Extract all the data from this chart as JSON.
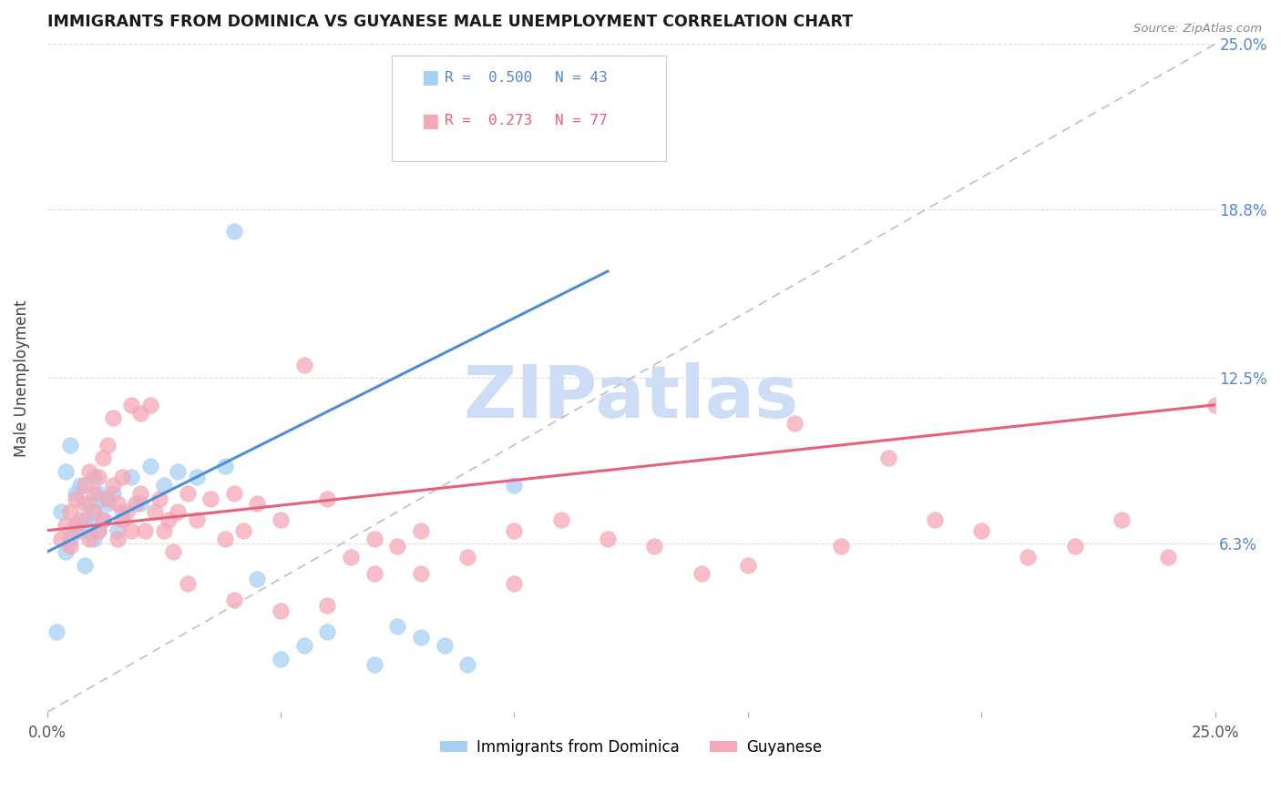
{
  "title": "IMMIGRANTS FROM DOMINICA VS GUYANESE MALE UNEMPLOYMENT CORRELATION CHART",
  "source": "Source: ZipAtlas.com",
  "ylabel": "Male Unemployment",
  "ytick_labels": [
    "6.3%",
    "12.5%",
    "18.8%",
    "25.0%"
  ],
  "ytick_values": [
    0.063,
    0.125,
    0.188,
    0.25
  ],
  "xlim": [
    0.0,
    0.25
  ],
  "ylim": [
    0.0,
    0.25
  ],
  "series1_color": "#a8d0f5",
  "series2_color": "#f5a8b8",
  "trendline1_color": "#4a90d9",
  "trendline2_color": "#e8607a",
  "diagonal_color": "#c0c0c0",
  "watermark_color": "#ccddf5",
  "series1_x": [
    0.002,
    0.003,
    0.004,
    0.004,
    0.005,
    0.005,
    0.006,
    0.006,
    0.007,
    0.007,
    0.008,
    0.008,
    0.009,
    0.009,
    0.01,
    0.01,
    0.01,
    0.011,
    0.011,
    0.012,
    0.012,
    0.013,
    0.014,
    0.015,
    0.016,
    0.018,
    0.02,
    0.022,
    0.025,
    0.028,
    0.032,
    0.038,
    0.04,
    0.045,
    0.05,
    0.055,
    0.06,
    0.07,
    0.075,
    0.08,
    0.085,
    0.09,
    0.1
  ],
  "series1_y": [
    0.03,
    0.075,
    0.06,
    0.09,
    0.065,
    0.1,
    0.07,
    0.082,
    0.068,
    0.085,
    0.055,
    0.072,
    0.07,
    0.078,
    0.065,
    0.075,
    0.088,
    0.068,
    0.082,
    0.072,
    0.08,
    0.078,
    0.082,
    0.068,
    0.075,
    0.088,
    0.078,
    0.092,
    0.085,
    0.09,
    0.088,
    0.092,
    0.18,
    0.05,
    0.02,
    0.025,
    0.03,
    0.018,
    0.032,
    0.028,
    0.025,
    0.018,
    0.085
  ],
  "series2_x": [
    0.003,
    0.004,
    0.005,
    0.005,
    0.006,
    0.006,
    0.007,
    0.008,
    0.008,
    0.009,
    0.009,
    0.01,
    0.01,
    0.011,
    0.011,
    0.012,
    0.012,
    0.013,
    0.013,
    0.014,
    0.014,
    0.015,
    0.015,
    0.016,
    0.016,
    0.017,
    0.018,
    0.018,
    0.019,
    0.02,
    0.02,
    0.021,
    0.022,
    0.023,
    0.024,
    0.025,
    0.026,
    0.027,
    0.028,
    0.03,
    0.032,
    0.035,
    0.038,
    0.04,
    0.042,
    0.045,
    0.05,
    0.055,
    0.06,
    0.065,
    0.07,
    0.075,
    0.08,
    0.09,
    0.1,
    0.11,
    0.13,
    0.15,
    0.17,
    0.18,
    0.19,
    0.2,
    0.21,
    0.22,
    0.23,
    0.24,
    0.25,
    0.16,
    0.14,
    0.12,
    0.1,
    0.08,
    0.07,
    0.06,
    0.05,
    0.04,
    0.03
  ],
  "series2_y": [
    0.065,
    0.07,
    0.075,
    0.062,
    0.068,
    0.08,
    0.072,
    0.078,
    0.085,
    0.065,
    0.09,
    0.075,
    0.082,
    0.068,
    0.088,
    0.072,
    0.095,
    0.08,
    0.1,
    0.085,
    0.11,
    0.065,
    0.078,
    0.072,
    0.088,
    0.075,
    0.068,
    0.115,
    0.078,
    0.082,
    0.112,
    0.068,
    0.115,
    0.075,
    0.08,
    0.068,
    0.072,
    0.06,
    0.075,
    0.082,
    0.072,
    0.08,
    0.065,
    0.082,
    0.068,
    0.078,
    0.072,
    0.13,
    0.08,
    0.058,
    0.065,
    0.062,
    0.052,
    0.058,
    0.068,
    0.072,
    0.062,
    0.055,
    0.062,
    0.095,
    0.072,
    0.068,
    0.058,
    0.062,
    0.072,
    0.058,
    0.115,
    0.108,
    0.052,
    0.065,
    0.048,
    0.068,
    0.052,
    0.04,
    0.038,
    0.042,
    0.048
  ],
  "trendline1_x": [
    0.0,
    0.12
  ],
  "trendline1_y": [
    0.06,
    0.165
  ],
  "trendline2_x": [
    0.0,
    0.25
  ],
  "trendline2_y": [
    0.068,
    0.115
  ]
}
